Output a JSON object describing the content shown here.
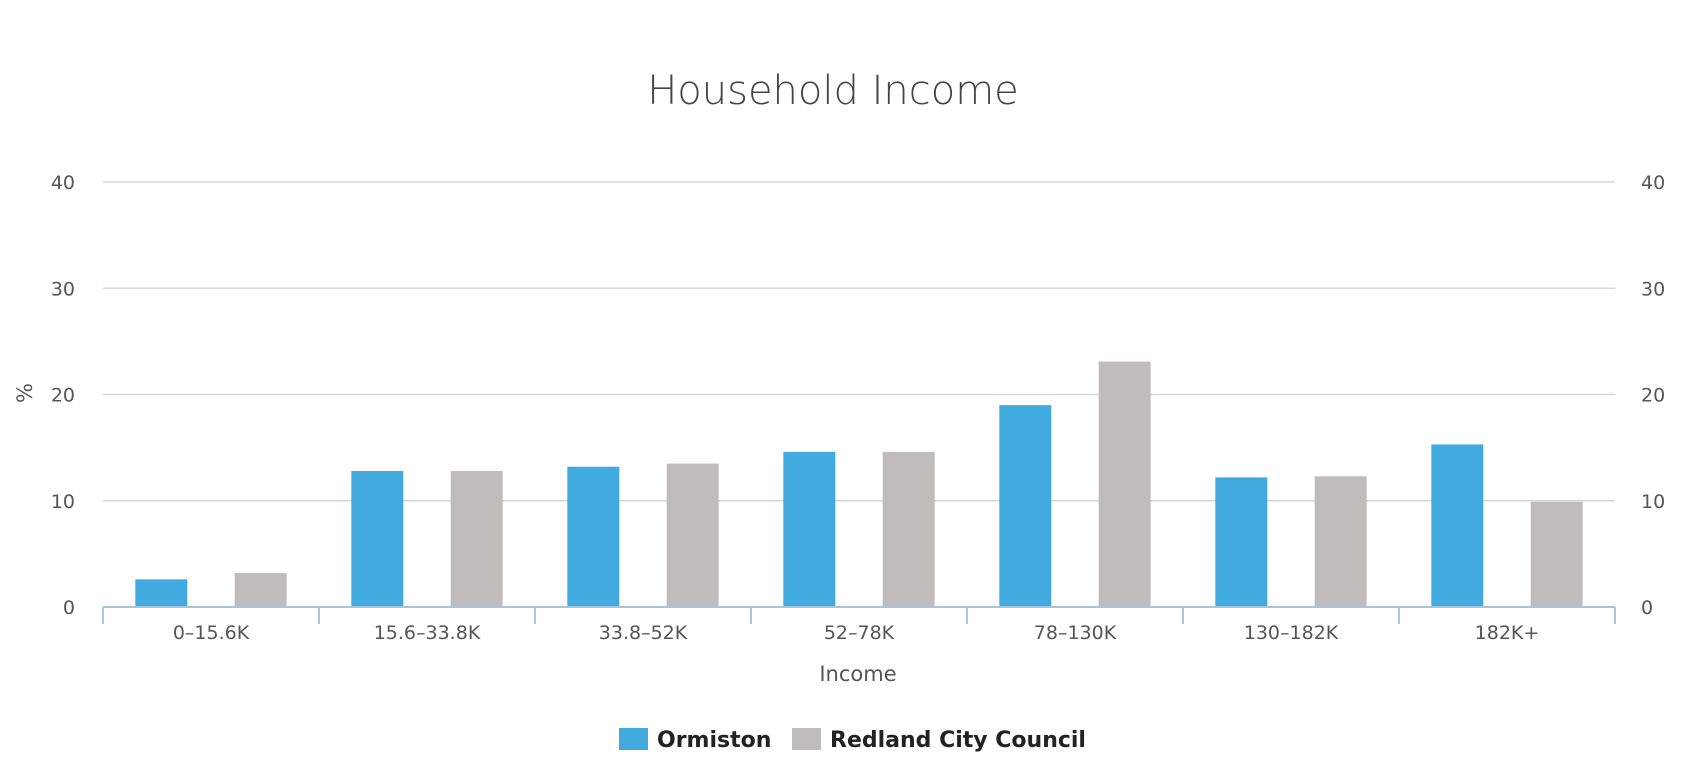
{
  "chart_data": {
    "type": "bar",
    "title": "Household Income",
    "xlabel": "Income",
    "ylabel": "%",
    "ylim": [
      0,
      40
    ],
    "yticks": [
      "0",
      "10",
      "20",
      "30",
      "40"
    ],
    "categories": [
      "0–15.6K",
      "15.6–33.8K",
      "33.8–52K",
      "52–78K",
      "78–130K",
      "130–182K",
      "182K+"
    ],
    "series": [
      {
        "name": "Ormiston",
        "color": "#41abe0",
        "values": [
          2.6,
          12.8,
          13.2,
          14.6,
          19.0,
          12.2,
          15.3
        ]
      },
      {
        "name": "Redland City Council",
        "color": "#c1bcbc",
        "values": [
          3.2,
          12.8,
          13.5,
          14.6,
          23.1,
          12.3,
          9.9
        ]
      }
    ],
    "grid": true,
    "legend_position": "bottom-center"
  }
}
